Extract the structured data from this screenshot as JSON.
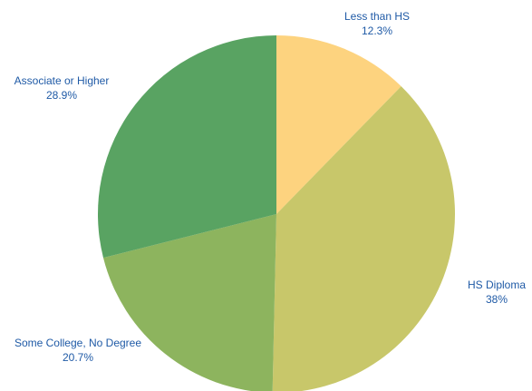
{
  "chart_data": {
    "type": "pie",
    "title": "",
    "legend": "none",
    "slices": [
      {
        "label": "Less than HS",
        "value": 12.3,
        "value_label": "12.3%",
        "color": "#fdd37f"
      },
      {
        "label": "HS Diploma",
        "value": 38,
        "value_label": "38%",
        "color": "#c8c76a"
      },
      {
        "label": "Some College, No Degree",
        "value": 20.7,
        "value_label": "20.7%",
        "color": "#8db45e"
      },
      {
        "label": "Associate or Higher",
        "value": 28.9,
        "value_label": "28.9%",
        "color": "#59a362"
      }
    ],
    "start_angle": "12 o'clock",
    "direction": "clockwise",
    "label_color": "#1f5aa6"
  }
}
